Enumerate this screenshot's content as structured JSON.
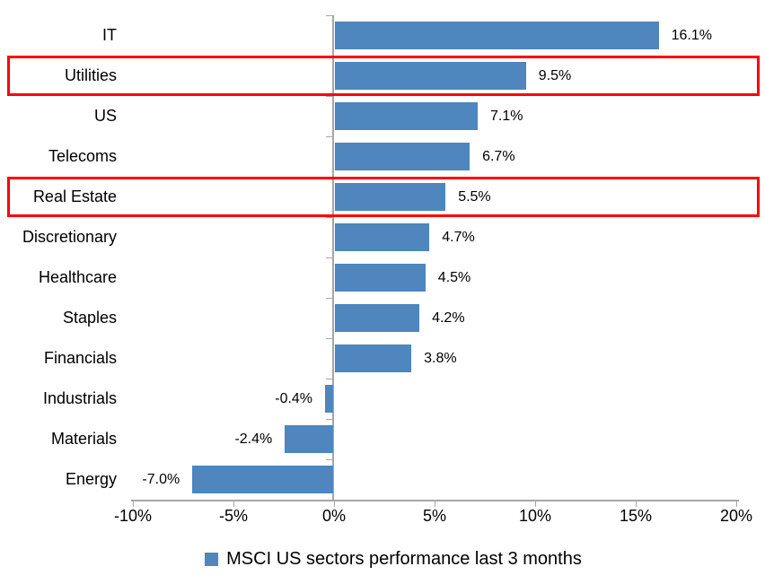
{
  "chart_data": {
    "type": "bar",
    "orientation": "horizontal",
    "title": "",
    "categories": [
      "IT",
      "Utilities",
      "US",
      "Telecoms",
      "Real Estate",
      "Discretionary",
      "Healthcare",
      "Staples",
      "Financials",
      "Industrials",
      "Materials",
      "Energy"
    ],
    "values": [
      16.1,
      9.5,
      7.1,
      6.7,
      5.5,
      4.7,
      4.5,
      4.2,
      3.8,
      -0.4,
      -2.4,
      -7.0
    ],
    "value_labels": [
      "16.1%",
      "9.5%",
      "7.1%",
      "6.7%",
      "5.5%",
      "4.7%",
      "4.5%",
      "4.2%",
      "3.8%",
      "-0.4%",
      "-2.4%",
      "-7.0%"
    ],
    "x_axis": {
      "min": -10,
      "max": 20,
      "ticks": [
        -10,
        -5,
        0,
        5,
        10,
        15,
        20
      ],
      "tick_labels": [
        "-10%",
        "-5%",
        "0%",
        "5%",
        "10%",
        "15%",
        "20%"
      ]
    },
    "grid": false,
    "legend": {
      "position": "bottom",
      "label": "MSCI US sectors performance last 3 months"
    },
    "highlighted_categories": [
      "Utilities",
      "Real Estate"
    ],
    "colors": {
      "bar": "#4E86BD",
      "highlight_box": "#FF0000",
      "axis": "#A6A6A6",
      "text": "#000000",
      "background": "#FFFFFF"
    }
  }
}
